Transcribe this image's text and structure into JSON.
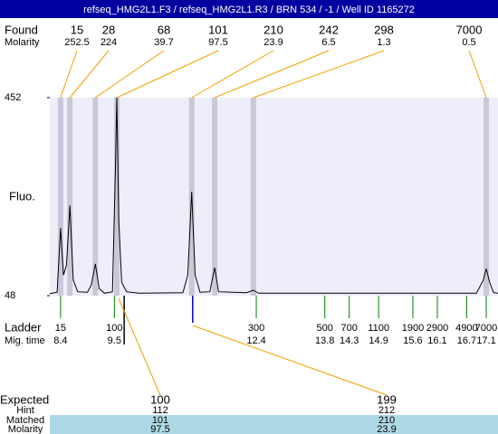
{
  "chart_data": {
    "type": "line",
    "title": "refseq_HMG2L1.F3 / refseq_HMG2L1.R3 / BRN 534 / -1 / Well ID 1165272",
    "found_label": "Found",
    "molarity_label": "Molarity",
    "found": {
      "sizes": [
        15,
        28,
        68,
        101,
        210,
        242,
        298,
        7000
      ],
      "molarity": [
        252.5,
        224,
        39.7,
        97.5,
        23.9,
        6.5,
        1.3,
        0.5
      ],
      "times": [
        8.4,
        8.59,
        9.11,
        9.55,
        11.08,
        11.55,
        12.34,
        17.1
      ]
    },
    "ylabel": "Fluo.",
    "ylim": [
      48,
      452
    ],
    "yticks": [
      48,
      452
    ],
    "xlim": [
      8.18,
      17.34
    ],
    "trace": {
      "color": "#000000",
      "x": [
        8.18,
        8.33,
        8.4,
        8.46,
        8.52,
        8.59,
        8.66,
        8.75,
        8.95,
        9.03,
        9.11,
        9.19,
        9.3,
        9.46,
        9.52,
        9.55,
        9.59,
        9.65,
        9.75,
        10.0,
        10.9,
        11.0,
        11.08,
        11.15,
        11.25,
        11.45,
        11.55,
        11.63,
        12.2,
        12.34,
        12.45,
        16.9,
        17.04,
        17.1,
        17.17,
        17.25,
        17.34
      ],
      "y": [
        52,
        55,
        186,
        90,
        110,
        232,
        80,
        56,
        55,
        70,
        113,
        62,
        53,
        56,
        300,
        452,
        200,
        75,
        56,
        53,
        54,
        90,
        260,
        90,
        55,
        56,
        105,
        56,
        54,
        59,
        53,
        53,
        80,
        103,
        75,
        54,
        53
      ]
    },
    "ladder_label": "Ladder",
    "migtime_label": "Mig. time",
    "ladder": {
      "color": "#008000",
      "sizes": [
        15,
        100,
        300,
        500,
        700,
        1100,
        1900,
        2900,
        4900,
        7000
      ],
      "times": [
        8.4,
        9.5,
        12.4,
        13.8,
        14.3,
        14.9,
        15.6,
        16.1,
        16.7,
        17.1
      ]
    },
    "expected_label": "Expected",
    "hint_label": "Hint",
    "matched_label": "Matched",
    "molarity2_label": "Molarity",
    "expected": {
      "sizes": [
        100,
        199
      ],
      "hint": [
        112,
        212
      ],
      "matched": [
        101,
        210
      ],
      "molarity": [
        97.5,
        23.9
      ],
      "times": [
        9.7,
        11.1
      ],
      "colors": [
        "#000000",
        "#0000cc"
      ]
    }
  }
}
